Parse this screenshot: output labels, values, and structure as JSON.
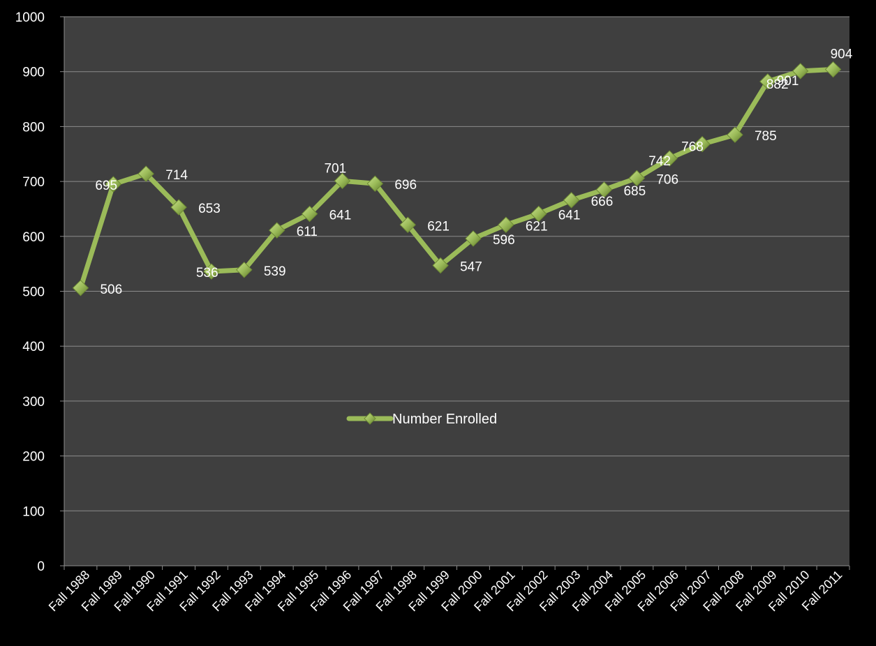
{
  "chart_data": {
    "type": "line",
    "categories": [
      "Fall 1988",
      "Fall 1989",
      "Fall 1990",
      "Fall 1991",
      "Fall 1992",
      "Fall 1993",
      "Fall 1994",
      "Fall 1995",
      "Fall 1996",
      "Fall 1997",
      "Fall 1998",
      "Fall 1999",
      "Fall 2000",
      "Fall 2001",
      "Fall 2002",
      "Fall 2003",
      "Fall 2004",
      "Fall 2005",
      "Fall 2006",
      "Fall 2007",
      "Fall 2008",
      "Fall 2009",
      "Fall 2010",
      "Fall 2011"
    ],
    "series": [
      {
        "name": "Number Enrolled",
        "values": [
          506,
          695,
          714,
          653,
          536,
          539,
          611,
          641,
          701,
          696,
          621,
          547,
          596,
          621,
          641,
          666,
          685,
          706,
          742,
          768,
          785,
          882,
          901,
          904
        ],
        "labels": [
          "506",
          "695",
          "714",
          "653",
          "536",
          "539",
          "611",
          "641",
          "701",
          "696",
          "621",
          "547",
          "596",
          "621",
          "641",
          "666",
          "685",
          "706",
          "742",
          "768",
          "785",
          "882",
          "901",
          "904"
        ]
      }
    ],
    "title": "",
    "xlabel": "",
    "ylabel": "",
    "ylim": [
      0,
      1000
    ],
    "yticks": [
      "0",
      "100",
      "200",
      "300",
      "400",
      "500",
      "600",
      "700",
      "800",
      "900",
      "1000"
    ],
    "grid": true,
    "legend": "center",
    "colors": {
      "background": "#000000",
      "plot_area": "#3f3f3f",
      "gridline": "#8c8c8c",
      "series_line": "#9bbb59",
      "marker": "#8fb04a",
      "text": "#ffffff"
    }
  }
}
